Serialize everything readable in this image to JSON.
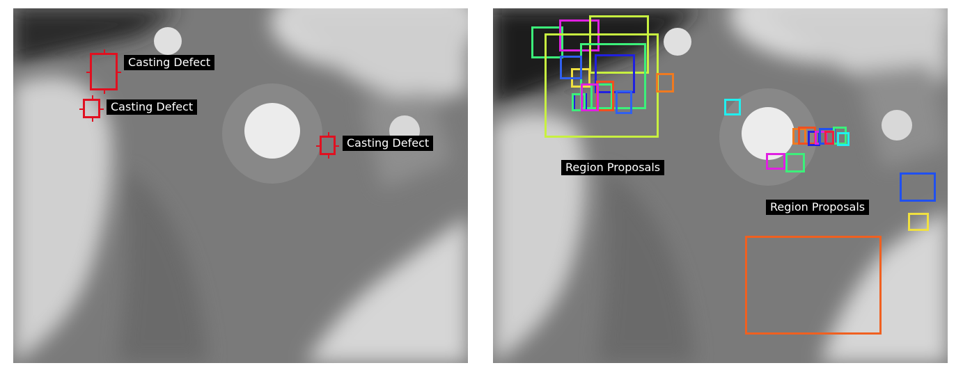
{
  "left_panel": {
    "defect_label": "Casting Defect",
    "box_color": "#e01020",
    "detections": [
      {
        "label": "Casting Defect"
      },
      {
        "label": "Casting Defect"
      },
      {
        "label": "Casting Defect"
      }
    ]
  },
  "right_panel": {
    "proposal_labels": [
      "Region Proposals",
      "Region Proposals"
    ],
    "proposal_colors": [
      "#3cf07a",
      "#e020e0",
      "#c8f040",
      "#2050f0",
      "#2020e0",
      "#f0e040",
      "#f07a20",
      "#20f0f0",
      "#f05020",
      "#f02040",
      "#3060f0",
      "#f0c030",
      "#f06020"
    ]
  }
}
